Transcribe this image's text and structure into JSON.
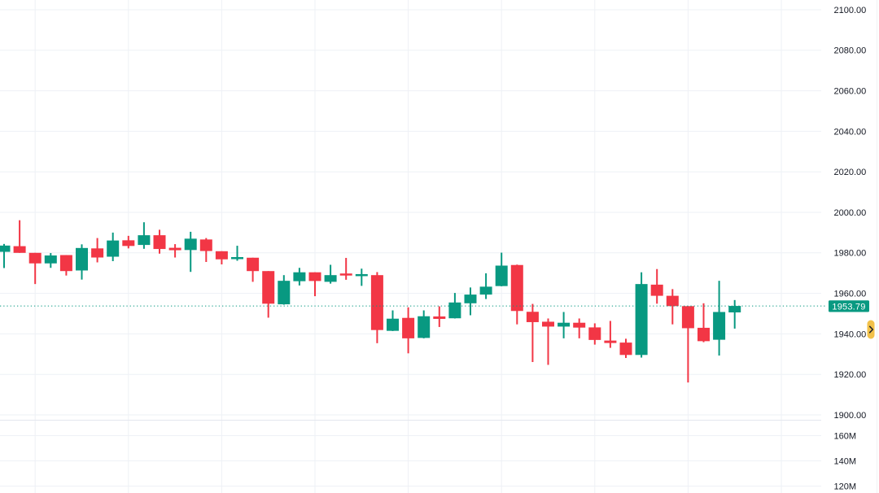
{
  "window": {
    "title": "Candlestick price chart with volume pane"
  },
  "chart_data": {
    "type": "candlestick",
    "title": "",
    "xlabel": "",
    "ylabel": "",
    "price_axis": {
      "ticks": [
        {
          "value": 2100,
          "label": "2100.00"
        },
        {
          "value": 2080,
          "label": "2080.00"
        },
        {
          "value": 2060,
          "label": "2060.00"
        },
        {
          "value": 2040,
          "label": "2040.00"
        },
        {
          "value": 2020,
          "label": "2020.00"
        },
        {
          "value": 2000,
          "label": "2000.00"
        },
        {
          "value": 1980,
          "label": "1980.00"
        },
        {
          "value": 1960,
          "label": "1960.00"
        },
        {
          "value": 1940,
          "label": "1940.00"
        },
        {
          "value": 1920,
          "label": "1920.00"
        },
        {
          "value": 1900,
          "label": "1900.00"
        }
      ],
      "tick_step": 20,
      "visible_range": [
        1861.5,
        2104.8
      ]
    },
    "volume_axis": {
      "ticks": [
        {
          "value": 160000000,
          "label": "160M"
        },
        {
          "value": 140000000,
          "label": "140M"
        },
        {
          "value": 120000000,
          "label": "120M"
        }
      ]
    },
    "time_gridline_bars": [
      2,
      8,
      14,
      20,
      26,
      32,
      38,
      44,
      50
    ],
    "grid": "on",
    "legend": "none",
    "candles": [
      {
        "o": 1980.5,
        "h": 1984.4,
        "l": 1972.5,
        "c": 1983.6
      },
      {
        "o": 1983.3,
        "h": 1996.1,
        "l": 1980.0,
        "c": 1980.0
      },
      {
        "o": 1980.0,
        "h": 1980.0,
        "l": 1964.6,
        "c": 1974.8
      },
      {
        "o": 1974.8,
        "h": 1979.9,
        "l": 1972.6,
        "c": 1978.7
      },
      {
        "o": 1978.9,
        "h": 1978.9,
        "l": 1968.8,
        "c": 1971.0
      },
      {
        "o": 1971.3,
        "h": 1984.2,
        "l": 1966.8,
        "c": 1982.4
      },
      {
        "o": 1982.2,
        "h": 1987.3,
        "l": 1975.3,
        "c": 1977.7
      },
      {
        "o": 1978.1,
        "h": 1990.0,
        "l": 1975.9,
        "c": 1986.1
      },
      {
        "o": 1986.2,
        "h": 1988.4,
        "l": 1982.2,
        "c": 1983.4
      },
      {
        "o": 1983.9,
        "h": 1995.1,
        "l": 1982.0,
        "c": 1988.7
      },
      {
        "o": 1988.7,
        "h": 1991.4,
        "l": 1979.6,
        "c": 1981.9
      },
      {
        "o": 1982.5,
        "h": 1984.3,
        "l": 1977.7,
        "c": 1981.3
      },
      {
        "o": 1981.4,
        "h": 1990.4,
        "l": 1970.6,
        "c": 1987.0
      },
      {
        "o": 1986.6,
        "h": 1987.3,
        "l": 1975.5,
        "c": 1980.9
      },
      {
        "o": 1980.8,
        "h": 1980.8,
        "l": 1974.3,
        "c": 1976.8
      },
      {
        "o": 1976.9,
        "h": 1983.5,
        "l": 1976.1,
        "c": 1977.9
      },
      {
        "o": 1977.6,
        "h": 1977.6,
        "l": 1965.7,
        "c": 1971.0
      },
      {
        "o": 1971.0,
        "h": 1971.0,
        "l": 1948.0,
        "c": 1954.9
      },
      {
        "o": 1954.6,
        "h": 1969.0,
        "l": 1954.4,
        "c": 1966.2
      },
      {
        "o": 1966.0,
        "h": 1972.6,
        "l": 1963.9,
        "c": 1970.4
      },
      {
        "o": 1970.4,
        "h": 1970.4,
        "l": 1958.6,
        "c": 1966.1
      },
      {
        "o": 1965.7,
        "h": 1974.1,
        "l": 1964.8,
        "c": 1969.0
      },
      {
        "o": 1969.8,
        "h": 1977.5,
        "l": 1966.7,
        "c": 1968.8
      },
      {
        "o": 1968.5,
        "h": 1972.2,
        "l": 1963.7,
        "c": 1969.5
      },
      {
        "o": 1969.0,
        "h": 1970.5,
        "l": 1935.4,
        "c": 1941.9
      },
      {
        "o": 1941.5,
        "h": 1951.6,
        "l": 1941.4,
        "c": 1947.5
      },
      {
        "o": 1947.9,
        "h": 1953.1,
        "l": 1930.4,
        "c": 1937.8
      },
      {
        "o": 1938.0,
        "h": 1951.6,
        "l": 1937.8,
        "c": 1948.7
      },
      {
        "o": 1948.6,
        "h": 1953.6,
        "l": 1943.4,
        "c": 1947.4
      },
      {
        "o": 1947.7,
        "h": 1960.2,
        "l": 1947.6,
        "c": 1955.5
      },
      {
        "o": 1955.1,
        "h": 1962.9,
        "l": 1949.2,
        "c": 1959.4
      },
      {
        "o": 1959.4,
        "h": 1969.9,
        "l": 1957.2,
        "c": 1963.3
      },
      {
        "o": 1963.6,
        "h": 1980.1,
        "l": 1963.5,
        "c": 1973.7
      },
      {
        "o": 1974.0,
        "h": 1974.2,
        "l": 1944.7,
        "c": 1951.3
      },
      {
        "o": 1950.9,
        "h": 1954.8,
        "l": 1926.1,
        "c": 1945.8
      },
      {
        "o": 1946.0,
        "h": 1947.6,
        "l": 1924.7,
        "c": 1943.6
      },
      {
        "o": 1943.6,
        "h": 1950.8,
        "l": 1937.8,
        "c": 1945.5
      },
      {
        "o": 1945.5,
        "h": 1947.6,
        "l": 1937.8,
        "c": 1943.1
      },
      {
        "o": 1943.2,
        "h": 1945.2,
        "l": 1934.7,
        "c": 1937.0
      },
      {
        "o": 1936.7,
        "h": 1946.4,
        "l": 1933.1,
        "c": 1935.5
      },
      {
        "o": 1935.7,
        "h": 1937.6,
        "l": 1928.1,
        "c": 1929.6
      },
      {
        "o": 1929.6,
        "h": 1970.4,
        "l": 1928.3,
        "c": 1964.6
      },
      {
        "o": 1964.3,
        "h": 1972.0,
        "l": 1954.9,
        "c": 1958.8
      },
      {
        "o": 1958.8,
        "h": 1962.1,
        "l": 1944.7,
        "c": 1953.7
      },
      {
        "o": 1953.7,
        "h": 1953.7,
        "l": 1916.0,
        "c": 1942.8
      },
      {
        "o": 1943.0,
        "h": 1955.1,
        "l": 1935.9,
        "c": 1936.4
      },
      {
        "o": 1937.1,
        "h": 1966.2,
        "l": 1929.3,
        "c": 1950.8
      },
      {
        "o": 1950.6,
        "h": 1956.7,
        "l": 1942.6,
        "c": 1953.79
      }
    ],
    "last_price": 1953.79,
    "last_price_label": "1953.79",
    "last_price_line": {
      "value": 1953.79,
      "style": "dotted",
      "direction": "up"
    },
    "colors": {
      "up": "#089981",
      "down": "#f23645",
      "background": "#ffffff",
      "grid": "#eef1f6",
      "pane_separator": "#e4e7ee",
      "axis_text": "#131722",
      "price_label_bg": "#089981",
      "price_label_text": "#ffffff",
      "realtime_button_bg": "#f2c14a",
      "realtime_button_icon": "#21242e"
    }
  },
  "price_scale": {
    "side": "right"
  },
  "realtime_button": {
    "icon": "chevron-right"
  }
}
